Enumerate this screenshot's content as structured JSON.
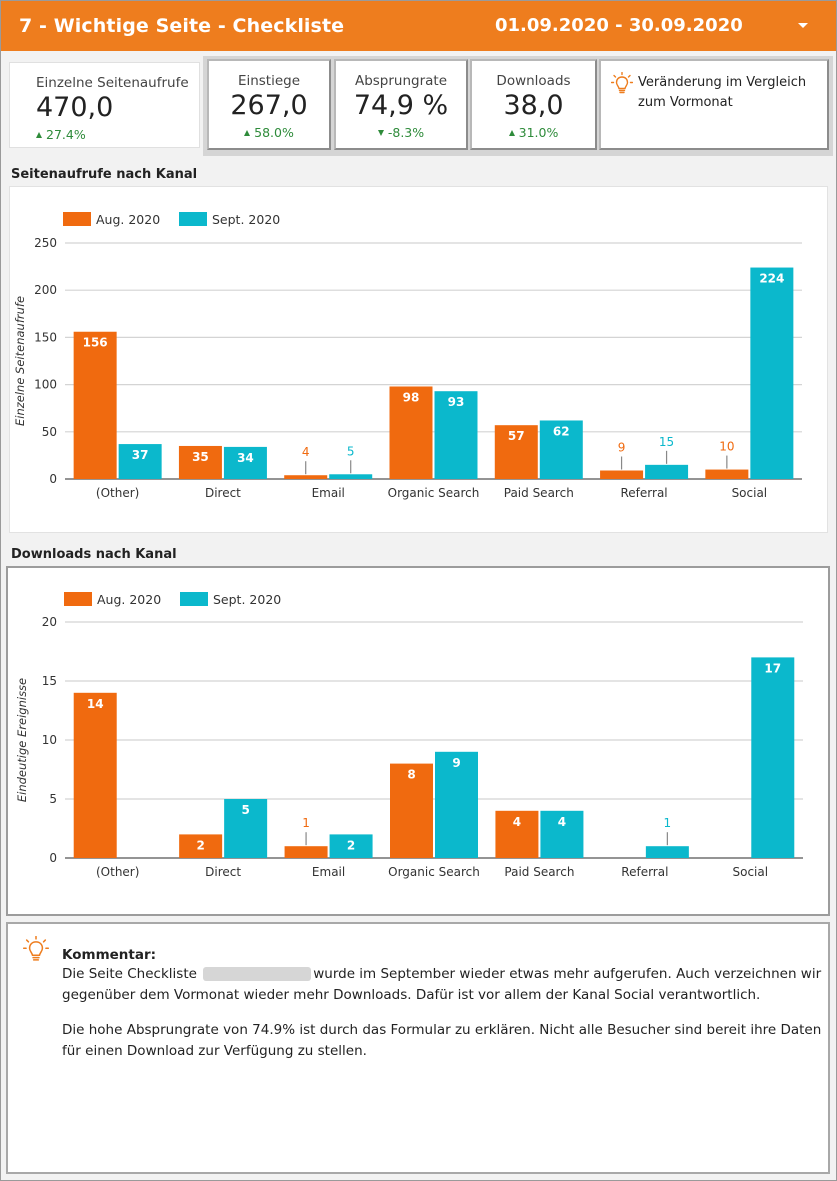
{
  "header": {
    "title": "7 - Wichtige Seite - Checkliste",
    "date_range": "01.09.2020 - 30.09.2020"
  },
  "colors": {
    "orange": "#F06A0F",
    "teal": "#0BB8CC",
    "green": "#2E8B3A"
  },
  "kpis": [
    {
      "label": "Einzelne Seitenaufrufe",
      "value": "470,0",
      "change": "27.4%",
      "direction": "up"
    },
    {
      "label": "Einstiege",
      "value": "267,0",
      "change": "58.0%",
      "direction": "up"
    },
    {
      "label": "Absprungrate",
      "value": "74,9 %",
      "change": "-8.3%",
      "direction": "down"
    },
    {
      "label": "Downloads",
      "value": "38,0",
      "change": "31.0%",
      "direction": "up"
    }
  ],
  "hint": {
    "icon": "lightbulb-icon",
    "text": "Veränderung im Vergleich zum Vormonat"
  },
  "sections": {
    "pageviews_title": "Seitenaufrufe nach Kanal",
    "downloads_title": "Downloads nach Kanal"
  },
  "chart_data": [
    {
      "type": "bar",
      "title": "Seitenaufrufe nach Kanal",
      "categories": [
        "(Other)",
        "Direct",
        "Email",
        "Organic Search",
        "Paid Search",
        "Referral",
        "Social"
      ],
      "series": [
        {
          "name": "Aug. 2020",
          "color": "#F06A0F",
          "values": [
            156,
            35,
            4,
            98,
            57,
            9,
            10
          ]
        },
        {
          "name": "Sept. 2020",
          "color": "#0BB8CC",
          "values": [
            37,
            34,
            5,
            93,
            62,
            15,
            224
          ]
        }
      ],
      "ylabel": "Einzelne Seitenaufrufe",
      "ylim": [
        0,
        250
      ],
      "yticks": [
        0,
        50,
        100,
        150,
        200,
        250
      ],
      "legend": "top-left",
      "grid": true
    },
    {
      "type": "bar",
      "title": "Downloads nach Kanal",
      "categories": [
        "(Other)",
        "Direct",
        "Email",
        "Organic Search",
        "Paid Search",
        "Referral",
        "Social"
      ],
      "series": [
        {
          "name": "Aug. 2020",
          "color": "#F06A0F",
          "values": [
            14,
            2,
            1,
            8,
            4,
            null,
            null
          ]
        },
        {
          "name": "Sept. 2020",
          "color": "#0BB8CC",
          "values": [
            null,
            5,
            2,
            9,
            4,
            1,
            17
          ]
        }
      ],
      "ylabel": "Eindeutige Ereignisse",
      "ylim": [
        0,
        20
      ],
      "yticks": [
        0,
        5,
        10,
        15,
        20
      ],
      "legend": "top-left",
      "grid": true
    }
  ],
  "comment": {
    "icon": "lightbulb-icon",
    "title": "Kommentar:",
    "p1_before": "Die Seite Checkliste",
    "p1_after": "wurde im September wieder etwas mehr aufgerufen. Auch verzeichnen wir gegenüber dem Vormonat wieder mehr Downloads. Dafür ist vor allem der Kanal Social verantwortlich.",
    "p2": "Die hohe Absprungrate von 74.9% ist durch das Formular zu erklären. Nicht alle Besucher sind bereit ihre Daten für einen Download zur Verfügung zu stellen."
  }
}
